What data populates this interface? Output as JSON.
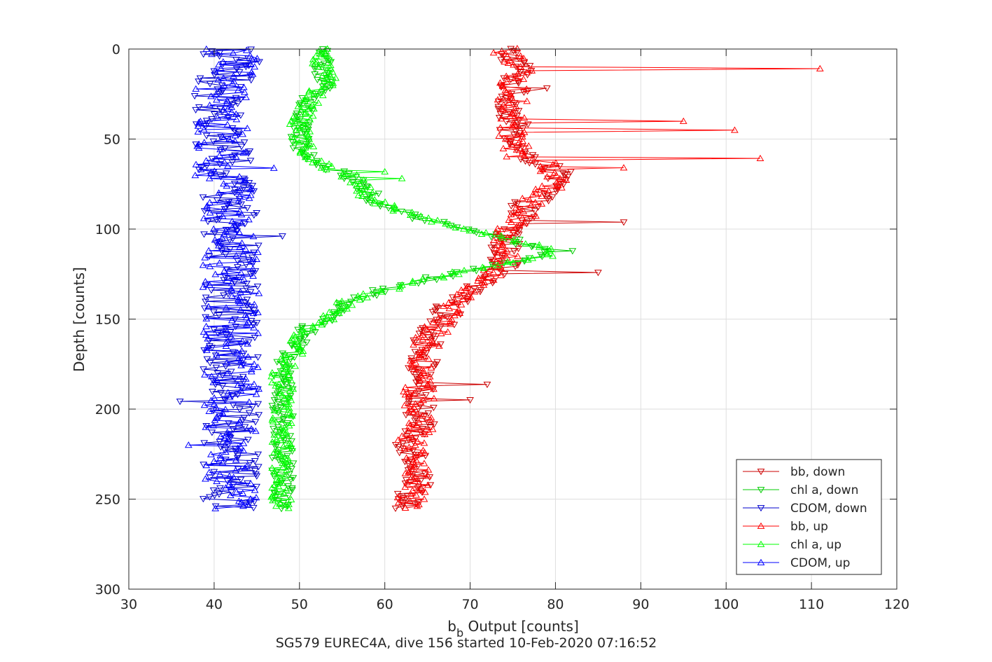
{
  "chart_data": {
    "type": "line",
    "xlabel_base": "b",
    "xlabel_sub": "b",
    "xlabel_rest": " Output [counts]",
    "ylabel": "Depth [counts]",
    "caption": "SG579 EUREC4A, dive 156 started 10-Feb-2020 07:16:52",
    "xlim": [
      30,
      120
    ],
    "ylim": [
      0,
      300
    ],
    "y_reversed": true,
    "xticks": [
      30,
      40,
      50,
      60,
      70,
      80,
      90,
      100,
      110,
      120
    ],
    "yticks": [
      0,
      50,
      100,
      150,
      200,
      250,
      300
    ],
    "xtick_labels": [
      "30",
      "40",
      "50",
      "60",
      "70",
      "80",
      "90",
      "100",
      "110",
      "120"
    ],
    "ytick_labels": [
      "0",
      "50",
      "100",
      "150",
      "200",
      "250",
      "300"
    ],
    "grid": true,
    "legend_position": "bottom-right",
    "series": [
      {
        "name": "bb, down",
        "color": "#cc0000",
        "marker": "triangle-down",
        "profile": [
          [
            0,
            74
          ],
          [
            10,
            76
          ],
          [
            20,
            75
          ],
          [
            30,
            75
          ],
          [
            40,
            75
          ],
          [
            50,
            75
          ],
          [
            60,
            76
          ],
          [
            65,
            80
          ],
          [
            70,
            80
          ],
          [
            75,
            80
          ],
          [
            80,
            79
          ],
          [
            85,
            77
          ],
          [
            90,
            76
          ],
          [
            95,
            76
          ],
          [
            100,
            75
          ],
          [
            110,
            74
          ],
          [
            120,
            74
          ],
          [
            130,
            71
          ],
          [
            140,
            68
          ],
          [
            150,
            67
          ],
          [
            160,
            65
          ],
          [
            170,
            65
          ],
          [
            180,
            64
          ],
          [
            190,
            64
          ],
          [
            200,
            64
          ],
          [
            210,
            64
          ],
          [
            220,
            63
          ],
          [
            230,
            64
          ],
          [
            240,
            64
          ],
          [
            250,
            63
          ],
          [
            255,
            63
          ]
        ],
        "spikes": [
          [
            22,
            79
          ],
          [
            96,
            88
          ],
          [
            124,
            85
          ],
          [
            186,
            72
          ],
          [
            195,
            70
          ]
        ]
      },
      {
        "name": "chl a, down",
        "color": "#00cc00",
        "marker": "triangle-down",
        "profile": [
          [
            0,
            52
          ],
          [
            10,
            53
          ],
          [
            20,
            53
          ],
          [
            30,
            51
          ],
          [
            40,
            50
          ],
          [
            50,
            50
          ],
          [
            60,
            51
          ],
          [
            65,
            53
          ],
          [
            70,
            56
          ],
          [
            75,
            57
          ],
          [
            80,
            58
          ],
          [
            85,
            59
          ],
          [
            90,
            62
          ],
          [
            95,
            65
          ],
          [
            100,
            69
          ],
          [
            105,
            74
          ],
          [
            110,
            78
          ],
          [
            115,
            79
          ],
          [
            120,
            73
          ],
          [
            125,
            68
          ],
          [
            130,
            63
          ],
          [
            135,
            59
          ],
          [
            140,
            56
          ],
          [
            145,
            54
          ],
          [
            150,
            53
          ],
          [
            155,
            51
          ],
          [
            160,
            50
          ],
          [
            170,
            49
          ],
          [
            180,
            48
          ],
          [
            190,
            48
          ],
          [
            200,
            48
          ],
          [
            210,
            48
          ],
          [
            220,
            48
          ],
          [
            230,
            48
          ],
          [
            240,
            48
          ],
          [
            250,
            48
          ],
          [
            255,
            48
          ]
        ],
        "spikes": [
          [
            112,
            82
          ]
        ]
      },
      {
        "name": "CDOM, down",
        "color": "#0000cc",
        "marker": "triangle-down",
        "profile": [
          [
            0,
            42
          ],
          [
            10,
            42
          ],
          [
            20,
            41
          ],
          [
            30,
            41
          ],
          [
            40,
            41
          ],
          [
            50,
            41
          ],
          [
            60,
            41
          ],
          [
            70,
            41
          ],
          [
            80,
            42
          ],
          [
            90,
            42
          ],
          [
            100,
            42
          ],
          [
            110,
            42
          ],
          [
            120,
            42
          ],
          [
            130,
            42
          ],
          [
            140,
            42
          ],
          [
            150,
            42
          ],
          [
            160,
            42
          ],
          [
            170,
            42
          ],
          [
            180,
            42
          ],
          [
            190,
            42
          ],
          [
            200,
            42
          ],
          [
            210,
            42
          ],
          [
            220,
            42
          ],
          [
            230,
            42
          ],
          [
            240,
            42
          ],
          [
            250,
            42
          ],
          [
            255,
            42
          ]
        ],
        "spikes": [
          [
            104,
            48
          ],
          [
            196,
            36
          ]
        ]
      },
      {
        "name": "bb, up",
        "color": "#ff0000",
        "marker": "triangle-up",
        "profile": [
          [
            0,
            74
          ],
          [
            10,
            76
          ],
          [
            20,
            75
          ],
          [
            30,
            75
          ],
          [
            40,
            75
          ],
          [
            50,
            75
          ],
          [
            60,
            76
          ],
          [
            65,
            80
          ],
          [
            70,
            80
          ],
          [
            75,
            80
          ],
          [
            80,
            79
          ],
          [
            85,
            77
          ],
          [
            90,
            76
          ],
          [
            95,
            76
          ],
          [
            100,
            75
          ],
          [
            110,
            74
          ],
          [
            120,
            74
          ],
          [
            130,
            71
          ],
          [
            140,
            68
          ],
          [
            150,
            67
          ],
          [
            160,
            65
          ],
          [
            170,
            65
          ],
          [
            180,
            64
          ],
          [
            190,
            64
          ],
          [
            200,
            64
          ],
          [
            210,
            64
          ],
          [
            220,
            63
          ],
          [
            230,
            64
          ],
          [
            240,
            64
          ],
          [
            250,
            63
          ],
          [
            255,
            63
          ]
        ],
        "spikes": [
          [
            11,
            111
          ],
          [
            40,
            95
          ],
          [
            45,
            101
          ],
          [
            61,
            104
          ],
          [
            66,
            88
          ]
        ]
      },
      {
        "name": "chl a, up",
        "color": "#00ff00",
        "marker": "triangle-up",
        "profile": [
          [
            0,
            52
          ],
          [
            10,
            53
          ],
          [
            20,
            53
          ],
          [
            30,
            51
          ],
          [
            40,
            50
          ],
          [
            50,
            50
          ],
          [
            60,
            51
          ],
          [
            65,
            53
          ],
          [
            70,
            56
          ],
          [
            75,
            57
          ],
          [
            80,
            58
          ],
          [
            85,
            59
          ],
          [
            90,
            62
          ],
          [
            95,
            65
          ],
          [
            100,
            69
          ],
          [
            105,
            74
          ],
          [
            110,
            78
          ],
          [
            115,
            79
          ],
          [
            120,
            73
          ],
          [
            125,
            68
          ],
          [
            130,
            63
          ],
          [
            135,
            59
          ],
          [
            140,
            56
          ],
          [
            145,
            54
          ],
          [
            150,
            53
          ],
          [
            155,
            51
          ],
          [
            160,
            50
          ],
          [
            170,
            49
          ],
          [
            180,
            48
          ],
          [
            190,
            48
          ],
          [
            200,
            48
          ],
          [
            210,
            48
          ],
          [
            220,
            48
          ],
          [
            230,
            48
          ],
          [
            240,
            48
          ],
          [
            250,
            48
          ],
          [
            255,
            48
          ]
        ],
        "spikes": [
          [
            68,
            60
          ],
          [
            72,
            62
          ]
        ]
      },
      {
        "name": "CDOM, up",
        "color": "#0000ff",
        "marker": "triangle-up",
        "profile": [
          [
            0,
            42
          ],
          [
            10,
            42
          ],
          [
            20,
            41
          ],
          [
            30,
            41
          ],
          [
            40,
            41
          ],
          [
            50,
            41
          ],
          [
            60,
            41
          ],
          [
            70,
            41
          ],
          [
            80,
            42
          ],
          [
            90,
            42
          ],
          [
            100,
            42
          ],
          [
            110,
            42
          ],
          [
            120,
            42
          ],
          [
            130,
            42
          ],
          [
            140,
            42
          ],
          [
            150,
            42
          ],
          [
            160,
            42
          ],
          [
            170,
            42
          ],
          [
            180,
            42
          ],
          [
            190,
            42
          ],
          [
            200,
            42
          ],
          [
            210,
            42
          ],
          [
            220,
            42
          ],
          [
            230,
            42
          ],
          [
            240,
            42
          ],
          [
            250,
            42
          ],
          [
            255,
            42
          ]
        ],
        "spikes": [
          [
            66,
            47
          ],
          [
            220,
            37
          ]
        ]
      }
    ]
  }
}
